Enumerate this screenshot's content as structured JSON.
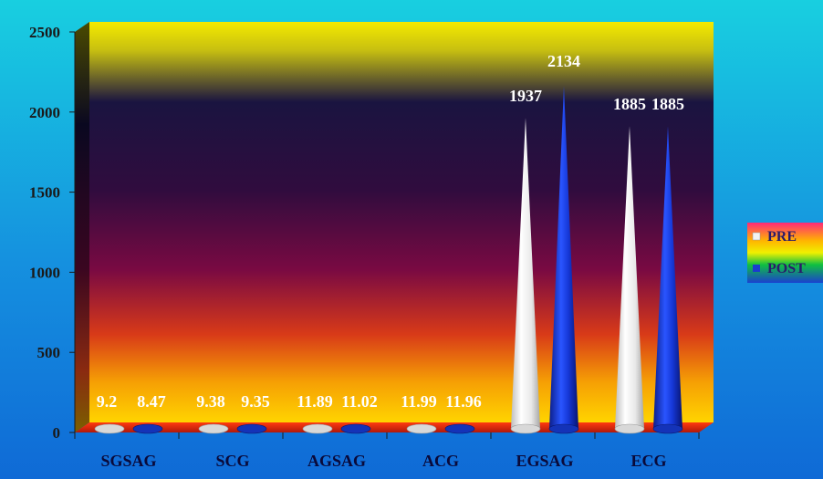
{
  "chart_data": {
    "type": "bar",
    "bar_shape": "cone",
    "categories": [
      "SGSAG",
      "SCG",
      "AGSAG",
      "ACG",
      "EGSAG",
      "ECG"
    ],
    "series": [
      {
        "name": "PRE",
        "values": [
          9.2,
          9.38,
          11.89,
          11.99,
          1937,
          1885
        ],
        "labels": [
          "9.2",
          "9.38",
          "11.89",
          "11.99",
          "1937",
          "1885"
        ],
        "color": "#f2f2f2"
      },
      {
        "name": "POST",
        "values": [
          8.47,
          9.35,
          11.02,
          11.96,
          2134,
          1885
        ],
        "labels": [
          "8.47",
          "9.35",
          "11.02",
          "11.96",
          "2134",
          "1885"
        ],
        "color": "#1a3ccf"
      }
    ],
    "yticks": [
      "0",
      "500",
      "1000",
      "1500",
      "2000",
      "2500"
    ],
    "ylim": [
      0,
      2500
    ],
    "title": "",
    "xlabel": "",
    "ylabel": "",
    "grid": false,
    "legend_position": "right"
  }
}
